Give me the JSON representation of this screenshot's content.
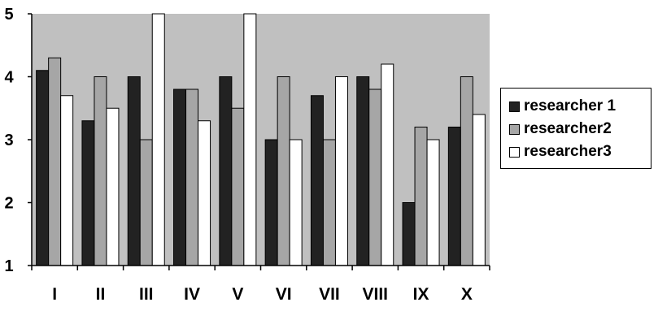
{
  "chart_data": {
    "type": "bar",
    "categories": [
      "I",
      "II",
      "III",
      "IV",
      "V",
      "VI",
      "VII",
      "VIII",
      "IX",
      "X"
    ],
    "series": [
      {
        "name": "researcher 1",
        "color": "#222222",
        "values": [
          4.1,
          3.3,
          4.0,
          3.8,
          4.0,
          3.0,
          3.7,
          4.0,
          2.0,
          3.2
        ]
      },
      {
        "name": "researcher2",
        "color": "#a6a6a6",
        "values": [
          4.3,
          4.0,
          3.0,
          3.8,
          3.5,
          4.0,
          3.0,
          3.8,
          3.2,
          4.0
        ]
      },
      {
        "name": "researcher3",
        "color": "#ffffff",
        "values": [
          3.7,
          3.5,
          5.0,
          3.3,
          5.0,
          3.0,
          4.0,
          4.2,
          3.0,
          3.4
        ]
      }
    ],
    "ylim": [
      1,
      5
    ],
    "yticks": [
      "1",
      "2",
      "3",
      "4",
      "5"
    ],
    "plot_background": "#c0c0c0",
    "gridlines": false,
    "legend_position": "right"
  }
}
